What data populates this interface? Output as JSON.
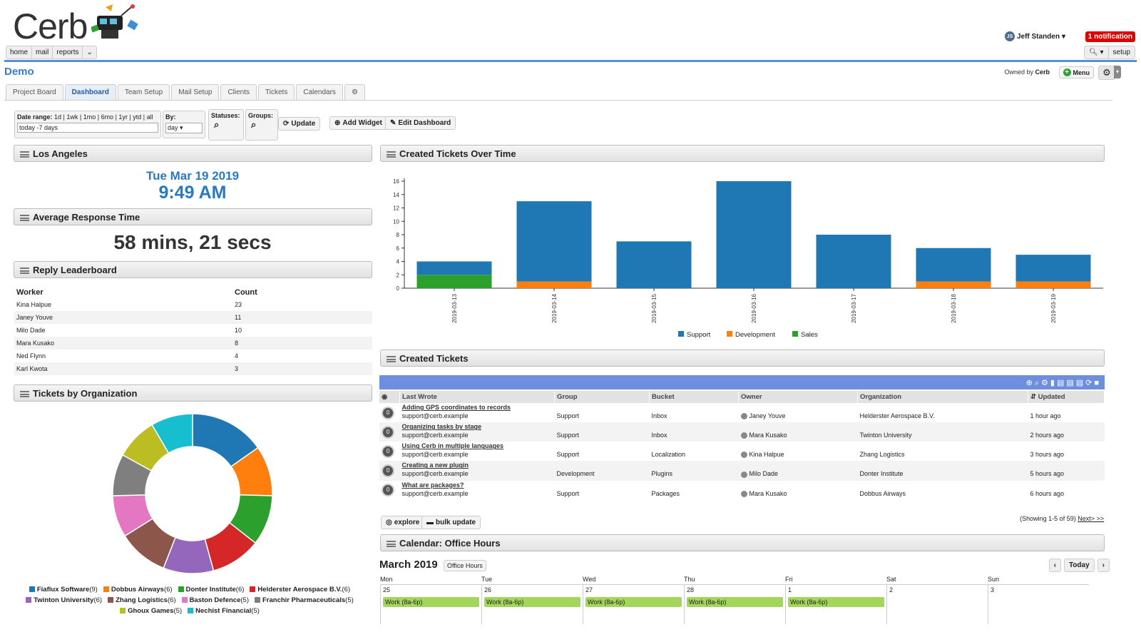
{
  "app": {
    "name": "Cerb"
  },
  "topnav": [
    "home",
    "mail",
    "reports",
    "⌄"
  ],
  "user": {
    "name": "Jeff Standen",
    "initials": "JS",
    "notification": "1 notification",
    "setup": "setup"
  },
  "workspace": {
    "title": "Demo",
    "owned_prefix": "Owned by",
    "owner": "Cerb",
    "menu": "Menu"
  },
  "tabs": [
    "Project Board",
    "Dashboard",
    "Team Setup",
    "Mail Setup",
    "Clients",
    "Tickets",
    "Calendars",
    "⚙"
  ],
  "filters": {
    "date_label": "Date range:",
    "date_opts": "1d | 1wk | 1mo | 6mo | 1yr | ytd | all",
    "date_value": "today -7 days",
    "by_label": "By:",
    "by_value": "day",
    "statuses": "Statuses:",
    "groups": "Groups:",
    "update": "Update",
    "add_widget": "Add Widget",
    "edit_dashboard": "Edit Dashboard"
  },
  "widgets": {
    "clock": {
      "title": "Los Angeles",
      "date": "Tue Mar 19 2019",
      "time": "9:49 AM"
    },
    "response": {
      "title": "Average Response Time",
      "value": "58 mins, 21 secs"
    },
    "leaderboard": {
      "title": "Reply Leaderboard",
      "headers": [
        "Worker",
        "Count"
      ],
      "rows": [
        [
          "Kina Halpue",
          "23"
        ],
        [
          "Janey Youve",
          "11"
        ],
        [
          "Milo Dade",
          "10"
        ],
        [
          "Mara Kusako",
          "8"
        ],
        [
          "Ned Flynn",
          "4"
        ],
        [
          "Karl Kwota",
          "3"
        ]
      ]
    },
    "orgs": {
      "title": "Tickets by Organization"
    },
    "created_chart": {
      "title": "Created Tickets Over Time"
    },
    "created_tickets": {
      "title": "Created Tickets"
    },
    "calendar": {
      "title": "Calendar: Office Hours"
    }
  },
  "chart_data": [
    {
      "type": "bar",
      "stacked": true,
      "categories": [
        "2019-03-13",
        "2019-03-14",
        "2019-03-15",
        "2019-03-16",
        "2019-03-17",
        "2019-03-18",
        "2019-03-19"
      ],
      "series": [
        {
          "name": "Sales",
          "color": "#2ca02c",
          "values": [
            2,
            0,
            0,
            0,
            0,
            0,
            0
          ]
        },
        {
          "name": "Development",
          "color": "#ff7f0e",
          "values": [
            0,
            1,
            0,
            0,
            0,
            1,
            1
          ]
        },
        {
          "name": "Support",
          "color": "#1f77b4",
          "values": [
            2,
            12,
            7,
            16,
            8,
            5,
            4
          ]
        }
      ],
      "ylim": [
        0,
        16
      ],
      "yticks": [
        0,
        2,
        4,
        6,
        8,
        10,
        12,
        14,
        16
      ],
      "legend": "bottom"
    },
    {
      "type": "pie",
      "donut": true,
      "labels": [
        "Fiaflux Software",
        "Dobbus Airways",
        "Donter Institute",
        "Helderster Aerospace B.V.",
        "Twinton University",
        "Zhang Logistics",
        "Baston Defence",
        "Franchir Pharmaceuticals",
        "Ghoux Games",
        "Nechist Financial"
      ],
      "values": [
        9,
        6,
        6,
        6,
        6,
        6,
        5,
        5,
        5,
        5
      ],
      "colors": [
        "#1f77b4",
        "#ff7f0e",
        "#2ca02c",
        "#d62728",
        "#9467bd",
        "#8c564b",
        "#e377c2",
        "#7f7f7f",
        "#bcbd22",
        "#17becf"
      ],
      "legend": "bottom"
    }
  ],
  "tickets": {
    "headers": [
      "Last Wrote",
      "Group",
      "Bucket",
      "Owner",
      "Organization",
      "Updated"
    ],
    "rows": [
      {
        "subject": "Adding GPS coordinates to records",
        "from": "support@cerb.example",
        "group": "Support",
        "bucket": "Inbox",
        "owner": "Janey Youve",
        "org": "Helderster Aerospace B.V.",
        "updated": "1 hour ago",
        "count": "0"
      },
      {
        "subject": "Organizing tasks by stage",
        "from": "support@cerb.example",
        "group": "Support",
        "bucket": "Inbox",
        "owner": "Mara Kusako",
        "org": "Twinton University",
        "updated": "2 hours ago",
        "count": "0"
      },
      {
        "subject": "Using Cerb in multiple languages",
        "from": "support@cerb.example",
        "group": "Support",
        "bucket": "Localization",
        "owner": "Kina Halpue",
        "org": "Zhang Logistics",
        "updated": "3 hours ago",
        "count": "0"
      },
      {
        "subject": "Creating a new plugin",
        "from": "support@cerb.example",
        "group": "Development",
        "bucket": "Plugins",
        "owner": "Milo Dade",
        "org": "Donter Institute",
        "updated": "5 hours ago",
        "count": "0"
      },
      {
        "subject": "What are packages?",
        "from": "support@cerb.example",
        "group": "Support",
        "bucket": "Packages",
        "owner": "Mara Kusako",
        "org": "Dobbus Airways",
        "updated": "6 hours ago",
        "count": "0"
      }
    ],
    "explore": "explore",
    "bulk": "bulk update",
    "paging": "(Showing 1-5 of 59)",
    "next": "Next> >>"
  },
  "calendar": {
    "month": "March 2019",
    "badge": "Office Hours",
    "today": "Today",
    "days": [
      "Mon",
      "Tue",
      "Wed",
      "Thu",
      "Fri",
      "Sat",
      "Sun"
    ],
    "dates": [
      "25",
      "26",
      "27",
      "28",
      "1",
      "2",
      "3"
    ],
    "event": "Work (8a-6p)"
  }
}
